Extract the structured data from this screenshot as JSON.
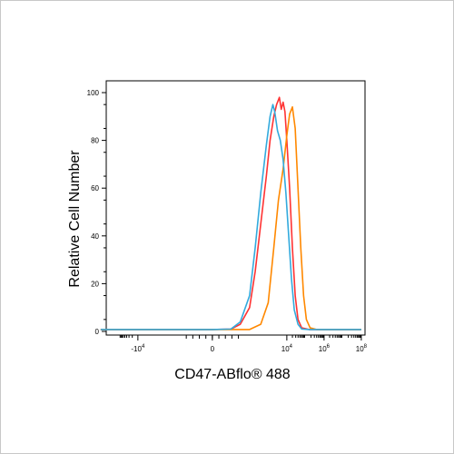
{
  "chart_data": {
    "type": "line",
    "xlabel": "CD47-ABflo",
    "xlabel_suffix": "® 488",
    "ylabel": "Relative Cell Number",
    "ylim": [
      0,
      100
    ],
    "y_ticks": [
      0,
      20,
      40,
      60,
      80,
      100
    ],
    "x_ticks": [
      {
        "label_base": "-10",
        "label_exp": "4",
        "log10": -4
      },
      {
        "label_base": "0",
        "label_exp": "",
        "log10": 0
      },
      {
        "label_base": "10",
        "label_exp": "4",
        "log10": 4
      },
      {
        "label_base": "10",
        "label_exp": "6",
        "log10": 6
      },
      {
        "label_base": "10",
        "label_exp": "8",
        "log10": 8
      }
    ],
    "x_scale": "biexponential",
    "grid": false,
    "series": [
      {
        "color": "#ff3333",
        "points": [
          [
            -6,
            0.8
          ],
          [
            -4,
            0.8
          ],
          [
            -2,
            0.8
          ],
          [
            0,
            0.8
          ],
          [
            1,
            1
          ],
          [
            1.5,
            3
          ],
          [
            2,
            10
          ],
          [
            2.3,
            25
          ],
          [
            2.6,
            45
          ],
          [
            2.9,
            65
          ],
          [
            3.1,
            80
          ],
          [
            3.3,
            90
          ],
          [
            3.45,
            95
          ],
          [
            3.6,
            98
          ],
          [
            3.7,
            93
          ],
          [
            3.8,
            96
          ],
          [
            3.9,
            92
          ],
          [
            4.0,
            80
          ],
          [
            4.15,
            60
          ],
          [
            4.3,
            35
          ],
          [
            4.45,
            15
          ],
          [
            4.6,
            5
          ],
          [
            4.8,
            1.5
          ],
          [
            5.2,
            0.8
          ],
          [
            6,
            0.8
          ],
          [
            8,
            0.8
          ]
        ]
      },
      {
        "color": "#ff8800",
        "points": [
          [
            -6,
            0.8
          ],
          [
            -4,
            0.8
          ],
          [
            -2,
            0.8
          ],
          [
            0,
            0.8
          ],
          [
            2,
            0.8
          ],
          [
            2.6,
            3
          ],
          [
            3.0,
            12
          ],
          [
            3.3,
            35
          ],
          [
            3.55,
            55
          ],
          [
            3.8,
            68
          ],
          [
            4.0,
            82
          ],
          [
            4.15,
            91
          ],
          [
            4.3,
            94
          ],
          [
            4.45,
            85
          ],
          [
            4.6,
            60
          ],
          [
            4.75,
            35
          ],
          [
            4.9,
            15
          ],
          [
            5.05,
            5
          ],
          [
            5.25,
            1.5
          ],
          [
            5.6,
            0.8
          ],
          [
            6,
            0.8
          ],
          [
            8,
            0.8
          ]
        ]
      },
      {
        "color": "#33aadd",
        "points": [
          [
            -6,
            0.8
          ],
          [
            -4,
            0.8
          ],
          [
            -2,
            0.8
          ],
          [
            0,
            0.8
          ],
          [
            1,
            1
          ],
          [
            1.5,
            4
          ],
          [
            2,
            15
          ],
          [
            2.3,
            35
          ],
          [
            2.6,
            58
          ],
          [
            2.9,
            78
          ],
          [
            3.1,
            90
          ],
          [
            3.25,
            95
          ],
          [
            3.35,
            92
          ],
          [
            3.5,
            84
          ],
          [
            3.65,
            80
          ],
          [
            3.8,
            72
          ],
          [
            3.95,
            58
          ],
          [
            4.1,
            40
          ],
          [
            4.25,
            22
          ],
          [
            4.4,
            9
          ],
          [
            4.6,
            3
          ],
          [
            4.8,
            1
          ],
          [
            5.2,
            0.8
          ],
          [
            6,
            0.8
          ],
          [
            8,
            0.8
          ]
        ]
      }
    ]
  }
}
